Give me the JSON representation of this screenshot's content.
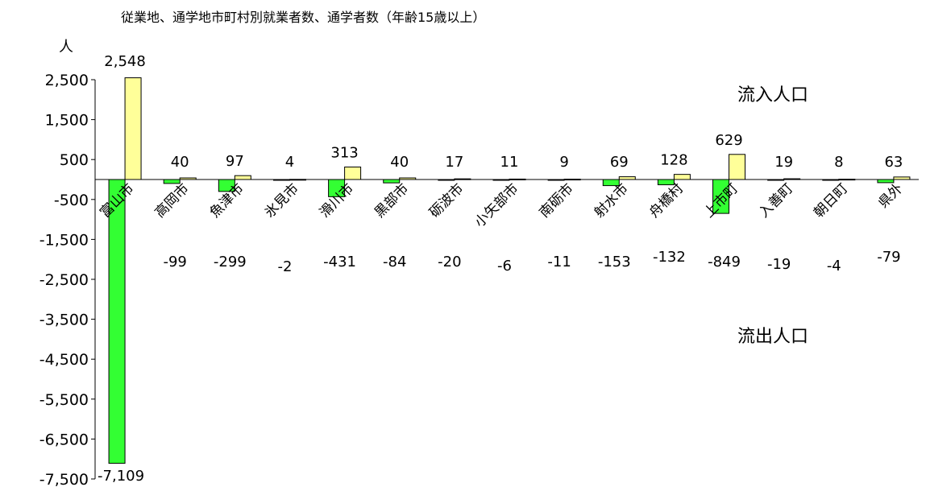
{
  "chart_data": {
    "type": "bar",
    "title": "従業地、通学地市町村別就業者数、通学者数（年齢15歳以上）",
    "ylabel": "人",
    "xlabel": "",
    "ylim": [
      -7500,
      2500
    ],
    "yticks": [
      2500,
      1500,
      500,
      -500,
      -1500,
      -2500,
      -3500,
      -4500,
      -5500,
      -6500,
      -7500
    ],
    "ytick_labels": [
      "2,500",
      "1,500",
      "500",
      "-500",
      "-1,500",
      "-2,500",
      "-3,500",
      "-4,500",
      "-5,500",
      "-6,500",
      "-7,500"
    ],
    "categories": [
      "富山市",
      "高岡市",
      "魚津市",
      "氷見市",
      "滑川市",
      "黒部市",
      "砺波市",
      "小矢部市",
      "南砺市",
      "射水市",
      "舟橋村",
      "上市町",
      "入善町",
      "朝日町",
      "県外"
    ],
    "series": [
      {
        "color": "#33ff33",
        "values": [
          -7109,
          -99,
          -299,
          -2,
          -431,
          -84,
          -20,
          -6,
          -11,
          -153,
          -132,
          -849,
          -19,
          -4,
          -79
        ],
        "value_labels": [
          "-7,109",
          "-99",
          "-299",
          "-2",
          "-431",
          "-84",
          "-20",
          "-6",
          "-11",
          "-153",
          "-132",
          "-849",
          "-19",
          "-4",
          "-79"
        ]
      },
      {
        "color": "#ffff99",
        "values": [
          2548,
          40,
          97,
          4,
          313,
          40,
          17,
          11,
          9,
          69,
          128,
          629,
          19,
          8,
          63
        ],
        "value_labels": [
          "2,548",
          "40",
          "97",
          "4",
          "313",
          "40",
          "17",
          "11",
          "9",
          "69",
          "128",
          "629",
          "19",
          "8",
          "63"
        ]
      }
    ],
    "annotations": [
      "流入人口",
      "流出人口"
    ],
    "grid": false,
    "legend": "none"
  }
}
